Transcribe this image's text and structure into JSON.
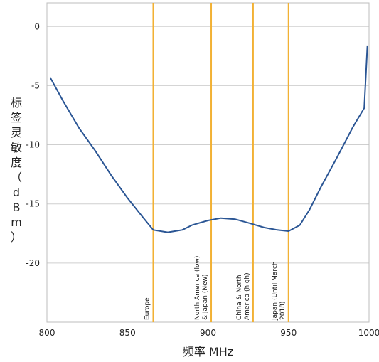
{
  "chart_data": {
    "type": "line",
    "title": "",
    "xlabel": "频率 MHz",
    "ylabel": "标签灵敏度（dBm）",
    "xlim": [
      800,
      1000
    ],
    "ylim": [
      -25,
      2
    ],
    "xticks": [
      800,
      850,
      900,
      950,
      1000
    ],
    "yticks": [
      0,
      -5,
      -10,
      -15,
      -20
    ],
    "grid": "horizontal",
    "colors": {
      "line": "#2a5594",
      "bands": "#f2b134",
      "grid": "#cfcfcf",
      "plot_border": "#bdbdbd"
    },
    "series": [
      {
        "x": [
          802,
          810,
          820,
          830,
          840,
          850,
          860,
          866,
          875,
          884,
          890,
          900,
          908,
          917,
          925,
          935,
          943,
          950,
          957,
          963,
          970,
          980,
          990,
          997,
          999
        ],
        "y": [
          -4.3,
          -6.3,
          -8.6,
          -10.5,
          -12.6,
          -14.5,
          -16.2,
          -17.2,
          -17.4,
          -17.2,
          -16.8,
          -16.4,
          -16.2,
          -16.3,
          -16.6,
          -17.0,
          -17.2,
          -17.3,
          -16.8,
          -15.5,
          -13.6,
          -11.1,
          -8.5,
          -6.9,
          -1.6
        ]
      }
    ],
    "bands": [
      {
        "x": 866,
        "label": [
          "Europe"
        ]
      },
      {
        "x": 902,
        "label": [
          "North America (low)",
          "& Japan (New)"
        ]
      },
      {
        "x": 928,
        "label": [
          "China & North",
          "America (high)"
        ]
      },
      {
        "x": 950,
        "label": [
          "Japan (Until March",
          "2018)"
        ]
      }
    ]
  }
}
